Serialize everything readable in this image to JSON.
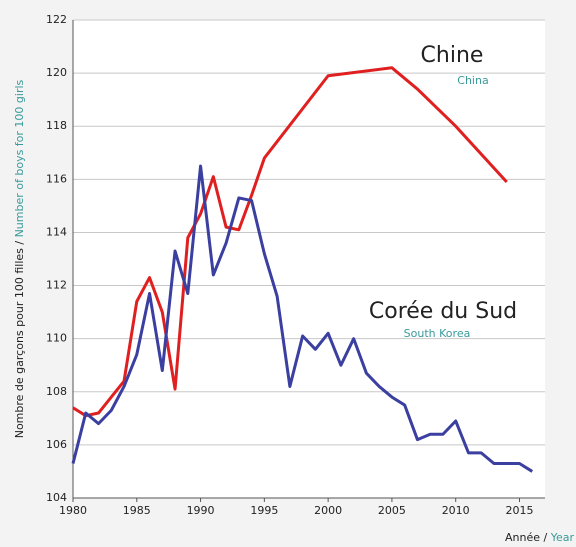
{
  "chart_data": {
    "type": "line",
    "ylabel_fr": "Nombre de garçons pour 100 filles /",
    "ylabel_en": "Number of boys for 100 girls",
    "xlabel_fr": "Année /",
    "xlabel_en": "Year",
    "xlim": [
      1980,
      2017
    ],
    "xticks": [
      1980,
      1985,
      1990,
      1995,
      2000,
      2005,
      2010,
      2015
    ],
    "ylim": [
      104,
      122
    ],
    "yticks": [
      104,
      106,
      108,
      110,
      112,
      114,
      116,
      118,
      120,
      122
    ],
    "grid": true,
    "series": [
      {
        "name": "Chine",
        "name_en": "China",
        "color": "#e02020",
        "x": [
          1980,
          1981,
          1982,
          1983,
          1984,
          1985,
          1986,
          1987,
          1988,
          1989,
          1990,
          1991,
          1992,
          1993,
          1994,
          1995,
          2000,
          2005,
          2007,
          2010,
          2014
        ],
        "values": [
          107.4,
          107.1,
          107.2,
          107.8,
          108.4,
          111.4,
          112.3,
          111.0,
          108.1,
          113.8,
          114.7,
          116.1,
          114.2,
          114.1,
          115.4,
          116.8,
          119.9,
          120.2,
          119.4,
          118.0,
          115.9
        ]
      },
      {
        "name": "Corée du Sud",
        "name_en": "South Korea",
        "color": "#3a3fa0",
        "x": [
          1980,
          1981,
          1982,
          1983,
          1984,
          1985,
          1986,
          1987,
          1988,
          1989,
          1990,
          1991,
          1992,
          1993,
          1994,
          1995,
          1996,
          1997,
          1998,
          1999,
          2000,
          2001,
          2002,
          2003,
          2004,
          2005,
          2006,
          2007,
          2008,
          2009,
          2010,
          2011,
          2012,
          2013,
          2014,
          2015,
          2016
        ],
        "values": [
          105.3,
          107.2,
          106.8,
          107.3,
          108.2,
          109.4,
          111.7,
          108.8,
          113.3,
          111.7,
          116.5,
          112.4,
          113.6,
          115.3,
          115.2,
          113.2,
          111.6,
          108.2,
          110.1,
          109.6,
          110.2,
          109.0,
          110.0,
          108.7,
          108.2,
          107.8,
          107.5,
          106.2,
          106.4,
          106.4,
          106.9,
          105.7,
          105.7,
          105.3,
          105.3,
          105.3,
          105.0
        ]
      }
    ]
  }
}
